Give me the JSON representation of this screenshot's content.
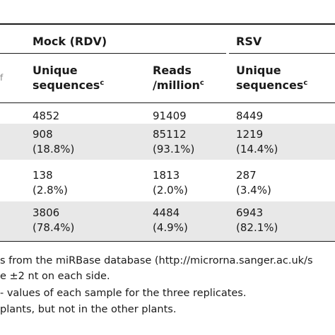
{
  "header": {
    "group_mock": "Mock (RDV)",
    "group_rsv": "RSV",
    "cut_left_fragment": "f",
    "col1_line1": "Unique",
    "col1_line2": "sequences",
    "col1_sup": "c",
    "col2_line1": "Reads",
    "col2_line2": "/million",
    "col2_sup": "c",
    "col3_line1": "Unique",
    "col3_line2": "sequences",
    "col3_sup": "c"
  },
  "rows": [
    {
      "a": "4852",
      "a_pct": "",
      "b": "91409",
      "b_pct": "",
      "c": "8449",
      "c_pct": ""
    },
    {
      "a": "908",
      "a_pct": "(18.8%)",
      "b": "85112",
      "b_pct": "(93.1%)",
      "c": "1219",
      "c_pct": "(14.4%)"
    },
    {
      "a": "138",
      "a_pct": "(2.8%)",
      "b": "1813",
      "b_pct": "(2.0%)",
      "c": "287",
      "c_pct": "(3.4%)"
    },
    {
      "a": "3806",
      "a_pct": "(78.4%)",
      "b": "4484",
      "b_pct": "(4.9%)",
      "c": "6943",
      "c_pct": "(82.1%)"
    }
  ],
  "footnotes": [
    "s from the miRBase database (http://microrna.sanger.ac.uk/s",
    "e ±2 nt on each side.",
    "- values of each sample for the three replicates.",
    "plants, but not in the other plants."
  ],
  "colors": {
    "text": "#1a1a1a",
    "shaded_row": "#e8e8e8",
    "rules": "#1a1a1a"
  }
}
